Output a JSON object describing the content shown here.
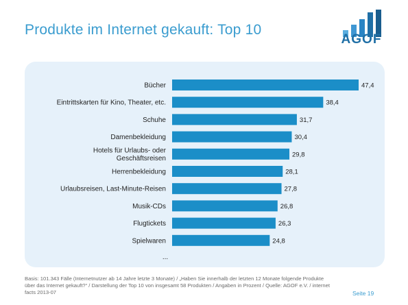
{
  "page": {
    "title": "Produkte im Internet gekauft: Top 10",
    "logo_text": "AGOF",
    "footnote": "Basis: 101.343 Fälle (Internetnutzer ab 14 Jahre letzte 3 Monate) / „Haben Sie innerhalb der letzten 12 Monate folgende Produkte über das Internet gekauft?“ / Darstellung der Top 10 von insgesamt 58 Produkten / Angaben in Prozent / Quelle: AGOF e.V. / internet facts 2013-07",
    "page_number": "Seite 19",
    "ellipsis": "...",
    "colors": {
      "title": "#3a9ccf",
      "bar": "#1b8ec8",
      "panel": "#e6f1fa",
      "logo": "#1f6fa6"
    }
  },
  "chart_data": {
    "type": "bar",
    "orientation": "horizontal",
    "title": "",
    "xlabel": "",
    "ylabel": "",
    "xlim": [
      0,
      47.4
    ],
    "grid": false,
    "categories": [
      [
        "Bücher"
      ],
      [
        "Eintrittskarten für Kino, Theater, etc."
      ],
      [
        "Schuhe"
      ],
      [
        "Damenbekleidung"
      ],
      [
        "Hotels für Urlaubs- oder",
        "Geschäftsreisen"
      ],
      [
        "Herrenbekleidung"
      ],
      [
        "Urlaubsreisen, Last-Minute-Reisen"
      ],
      [
        "Musik-CDs"
      ],
      [
        "Flugtickets"
      ],
      [
        "Spielwaren"
      ]
    ],
    "values": [
      47.4,
      38.4,
      31.7,
      30.4,
      29.8,
      28.1,
      27.8,
      26.8,
      26.3,
      24.8
    ],
    "value_labels": [
      "47,4",
      "38,4",
      "31,7",
      "30,4",
      "29,8",
      "28,1",
      "27,8",
      "26,8",
      "26,3",
      "24,8"
    ]
  }
}
